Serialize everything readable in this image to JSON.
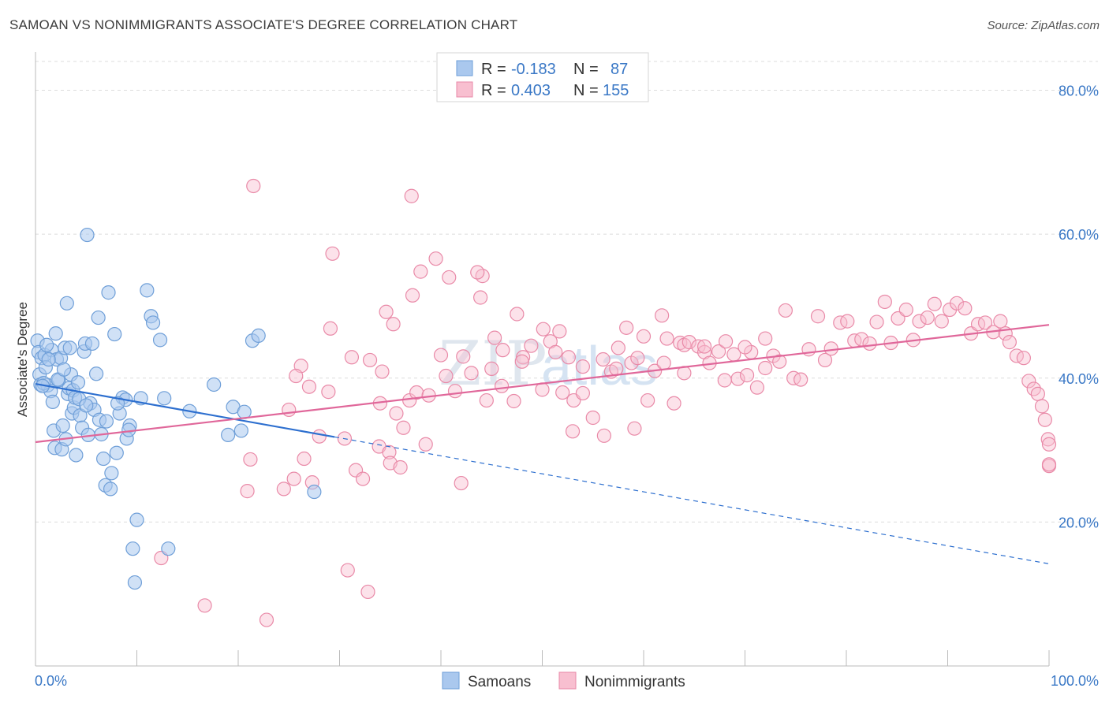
{
  "header": {
    "title": "SAMOAN VS NONIMMIGRANTS ASSOCIATE'S DEGREE CORRELATION CHART",
    "source": "Source: ZipAtlas.com"
  },
  "legend": {
    "r_label": "R =",
    "n_label": "N =",
    "rows": [
      {
        "name": "Samoans",
        "r": "-0.183",
        "n": "87",
        "fill": "#aac8ee",
        "stroke": "#6f9fd8"
      },
      {
        "name": "Nonimmigrants",
        "r": "0.403",
        "n": "155",
        "fill": "#f8bfd0",
        "stroke": "#e98aa8"
      }
    ]
  },
  "watermark": {
    "zip": "ZIP",
    "atlas": "atlas"
  },
  "chart_data": {
    "type": "scatter",
    "title": "SAMOAN VS NONIMMIGRANTS ASSOCIATE'S DEGREE CORRELATION CHART",
    "xlabel": "",
    "ylabel": "Associate's Degree",
    "xlim": [
      0,
      100
    ],
    "ylim": [
      0,
      84
    ],
    "x_tick_labels": [
      "0.0%",
      "100.0%"
    ],
    "y_ticks": [
      20,
      40,
      60,
      80
    ],
    "y_tick_labels": [
      "20.0%",
      "40.0%",
      "60.0%",
      "80.0%"
    ],
    "grid": true,
    "legend_position": "top-center",
    "colors": {
      "samoans": "#6f9fd8",
      "samoans_line": "#2d6fcf",
      "nonimmigrants": "#e98aa8",
      "nonimmigrants_line": "#e0679a"
    },
    "series": [
      {
        "name": "Samoans",
        "trend": {
          "x0": 0,
          "y0": 39.2,
          "x1": 100,
          "y1": 14.2,
          "solid_until_x": 29.5
        },
        "points": [
          [
            0.2,
            45.2
          ],
          [
            0.3,
            43.6
          ],
          [
            0.4,
            40.5
          ],
          [
            0.5,
            39.1
          ],
          [
            0.6,
            42.8
          ],
          [
            0.9,
            43.2
          ],
          [
            1.0,
            41.5
          ],
          [
            1.2,
            39.0
          ],
          [
            1.5,
            38.2
          ],
          [
            1.6,
            43.9
          ],
          [
            1.7,
            36.7
          ],
          [
            1.8,
            32.7
          ],
          [
            1.9,
            30.3
          ],
          [
            2.0,
            46.2
          ],
          [
            2.1,
            42.6
          ],
          [
            2.3,
            39.7
          ],
          [
            2.5,
            42.8
          ],
          [
            2.6,
            30.1
          ],
          [
            2.7,
            33.4
          ],
          [
            2.9,
            44.2
          ],
          [
            3.1,
            50.4
          ],
          [
            3.2,
            37.8
          ],
          [
            3.3,
            38.6
          ],
          [
            3.4,
            44.2
          ],
          [
            3.5,
            40.5
          ],
          [
            3.6,
            35.1
          ],
          [
            3.7,
            38.3
          ],
          [
            3.8,
            35.9
          ],
          [
            3.9,
            37.3
          ],
          [
            4.0,
            29.3
          ],
          [
            4.2,
            39.4
          ],
          [
            4.4,
            34.8
          ],
          [
            4.6,
            33.1
          ],
          [
            4.8,
            43.7
          ],
          [
            4.9,
            44.8
          ],
          [
            5.1,
            59.9
          ],
          [
            5.2,
            32.1
          ],
          [
            5.4,
            36.5
          ],
          [
            5.6,
            44.8
          ],
          [
            5.8,
            35.6
          ],
          [
            6.0,
            40.6
          ],
          [
            6.2,
            48.4
          ],
          [
            6.7,
            28.8
          ],
          [
            6.9,
            25.1
          ],
          [
            7.2,
            51.9
          ],
          [
            7.4,
            24.6
          ],
          [
            7.5,
            26.8
          ],
          [
            7.8,
            46.1
          ],
          [
            8.0,
            29.6
          ],
          [
            8.3,
            35.1
          ],
          [
            8.6,
            37.3
          ],
          [
            8.9,
            37.0
          ],
          [
            9.0,
            31.6
          ],
          [
            9.3,
            33.4
          ],
          [
            9.6,
            16.3
          ],
          [
            9.8,
            11.6
          ],
          [
            10.0,
            20.3
          ],
          [
            11.0,
            52.2
          ],
          [
            11.4,
            48.6
          ],
          [
            11.6,
            47.7
          ],
          [
            12.3,
            45.3
          ],
          [
            12.7,
            37.2
          ],
          [
            13.1,
            16.3
          ],
          [
            15.2,
            35.4
          ],
          [
            17.6,
            39.1
          ],
          [
            19.0,
            32.1
          ],
          [
            19.5,
            36.0
          ],
          [
            20.3,
            32.7
          ],
          [
            20.6,
            35.3
          ],
          [
            21.4,
            45.2
          ],
          [
            22.0,
            45.9
          ],
          [
            27.5,
            24.2
          ],
          [
            6.5,
            32.2
          ],
          [
            9.2,
            32.8
          ],
          [
            1.3,
            42.6
          ],
          [
            2.2,
            39.8
          ],
          [
            2.8,
            41.2
          ],
          [
            0.8,
            39.3
          ],
          [
            1.1,
            44.6
          ],
          [
            4.3,
            37.1
          ],
          [
            6.3,
            34.2
          ],
          [
            3.0,
            31.5
          ],
          [
            5.0,
            36.2
          ],
          [
            7.0,
            34.0
          ],
          [
            8.1,
            36.5
          ],
          [
            10.4,
            37.2
          ],
          [
            0.7,
            38.9
          ]
        ]
      },
      {
        "name": "Nonimmigrants",
        "trend": {
          "x0": 0,
          "y0": 31.1,
          "x1": 100,
          "y1": 47.4
        },
        "points": [
          [
            21.5,
            66.7
          ],
          [
            37.1,
            65.3
          ],
          [
            29.3,
            57.3
          ],
          [
            39.5,
            56.6
          ],
          [
            38.0,
            54.8
          ],
          [
            37.2,
            51.5
          ],
          [
            40.8,
            54.0
          ],
          [
            43.9,
            51.2
          ],
          [
            44.1,
            54.2
          ],
          [
            43.6,
            54.7
          ],
          [
            34.6,
            49.2
          ],
          [
            35.3,
            47.5
          ],
          [
            33.0,
            42.5
          ],
          [
            34.2,
            40.9
          ],
          [
            31.2,
            42.9
          ],
          [
            29.1,
            46.9
          ],
          [
            26.2,
            41.7
          ],
          [
            25.7,
            40.3
          ],
          [
            27.0,
            38.8
          ],
          [
            28.9,
            38.1
          ],
          [
            30.5,
            31.6
          ],
          [
            31.6,
            27.2
          ],
          [
            32.3,
            26.0
          ],
          [
            33.9,
            30.5
          ],
          [
            34.9,
            29.7
          ],
          [
            36.3,
            33.1
          ],
          [
            34.0,
            36.5
          ],
          [
            35.6,
            35.1
          ],
          [
            36.9,
            36.9
          ],
          [
            37.6,
            38.0
          ],
          [
            38.8,
            37.6
          ],
          [
            40.0,
            43.2
          ],
          [
            40.5,
            40.3
          ],
          [
            41.4,
            38.2
          ],
          [
            42.2,
            43.0
          ],
          [
            43.0,
            40.7
          ],
          [
            44.5,
            36.9
          ],
          [
            45.3,
            45.6
          ],
          [
            46.1,
            43.9
          ],
          [
            47.2,
            36.8
          ],
          [
            47.5,
            48.9
          ],
          [
            48.1,
            42.9
          ],
          [
            48.9,
            44.5
          ],
          [
            50.1,
            46.8
          ],
          [
            50.8,
            45.1
          ],
          [
            51.3,
            43.6
          ],
          [
            51.7,
            46.5
          ],
          [
            52.6,
            42.9
          ],
          [
            53.1,
            36.9
          ],
          [
            54.0,
            37.9
          ],
          [
            55.0,
            34.5
          ],
          [
            56.1,
            32.0
          ],
          [
            56.8,
            40.9
          ],
          [
            57.3,
            41.3
          ],
          [
            58.3,
            47.0
          ],
          [
            58.8,
            42.1
          ],
          [
            59.1,
            33.0
          ],
          [
            59.4,
            42.8
          ],
          [
            60.4,
            36.9
          ],
          [
            61.1,
            41.0
          ],
          [
            61.8,
            48.7
          ],
          [
            62.3,
            45.5
          ],
          [
            63.0,
            36.5
          ],
          [
            63.6,
            44.9
          ],
          [
            64.0,
            44.6
          ],
          [
            64.5,
            45.0
          ],
          [
            65.4,
            44.4
          ],
          [
            66.0,
            43.6
          ],
          [
            66.5,
            42.1
          ],
          [
            67.4,
            43.7
          ],
          [
            68.1,
            45.1
          ],
          [
            68.9,
            43.3
          ],
          [
            69.3,
            39.9
          ],
          [
            70.2,
            40.4
          ],
          [
            70.6,
            43.6
          ],
          [
            71.2,
            38.7
          ],
          [
            72.0,
            45.5
          ],
          [
            72.8,
            43.1
          ],
          [
            73.4,
            42.3
          ],
          [
            74.0,
            49.4
          ],
          [
            74.8,
            40.0
          ],
          [
            75.5,
            39.8
          ],
          [
            76.3,
            44.0
          ],
          [
            77.2,
            48.6
          ],
          [
            77.9,
            42.5
          ],
          [
            78.5,
            44.1
          ],
          [
            79.4,
            47.7
          ],
          [
            80.1,
            47.9
          ],
          [
            80.8,
            45.2
          ],
          [
            81.5,
            45.4
          ],
          [
            82.3,
            44.8
          ],
          [
            83.0,
            47.8
          ],
          [
            83.8,
            50.6
          ],
          [
            84.4,
            44.9
          ],
          [
            85.1,
            48.3
          ],
          [
            85.9,
            49.5
          ],
          [
            86.6,
            45.3
          ],
          [
            87.2,
            47.9
          ],
          [
            88.0,
            48.4
          ],
          [
            88.7,
            50.3
          ],
          [
            89.4,
            47.9
          ],
          [
            90.2,
            49.5
          ],
          [
            90.9,
            50.4
          ],
          [
            91.7,
            49.7
          ],
          [
            92.3,
            46.2
          ],
          [
            93.0,
            47.5
          ],
          [
            93.7,
            47.7
          ],
          [
            94.5,
            46.4
          ],
          [
            95.2,
            47.9
          ],
          [
            95.7,
            46.2
          ],
          [
            96.1,
            45.0
          ],
          [
            96.8,
            43.1
          ],
          [
            97.5,
            42.8
          ],
          [
            98.0,
            39.6
          ],
          [
            98.5,
            38.5
          ],
          [
            98.9,
            37.8
          ],
          [
            99.3,
            36.1
          ],
          [
            99.6,
            34.2
          ],
          [
            99.9,
            31.5
          ],
          [
            100.0,
            30.8
          ],
          [
            100.0,
            27.8
          ],
          [
            100.0,
            28.0
          ],
          [
            21.2,
            28.7
          ],
          [
            20.9,
            24.3
          ],
          [
            24.5,
            24.6
          ],
          [
            25.5,
            26.0
          ],
          [
            26.5,
            28.8
          ],
          [
            27.3,
            25.5
          ],
          [
            28.0,
            31.9
          ],
          [
            25.0,
            35.6
          ],
          [
            35.0,
            28.2
          ],
          [
            36.0,
            27.6
          ],
          [
            38.5,
            30.8
          ],
          [
            42.0,
            25.4
          ],
          [
            45.0,
            41.3
          ],
          [
            46.0,
            38.9
          ],
          [
            48.0,
            42.3
          ],
          [
            50.0,
            38.4
          ],
          [
            52.0,
            38.0
          ],
          [
            54.0,
            41.6
          ],
          [
            56.0,
            42.6
          ],
          [
            53.0,
            32.6
          ],
          [
            57.5,
            44.2
          ],
          [
            60.0,
            45.8
          ],
          [
            62.0,
            42.1
          ],
          [
            64.0,
            40.7
          ],
          [
            66.0,
            44.4
          ],
          [
            68.0,
            39.7
          ],
          [
            70.0,
            44.3
          ],
          [
            72.0,
            41.4
          ],
          [
            16.7,
            8.4
          ],
          [
            22.8,
            6.4
          ],
          [
            12.4,
            15.0
          ],
          [
            30.8,
            13.3
          ],
          [
            32.8,
            10.3
          ]
        ]
      }
    ],
    "bottom_legend": [
      "Samoans",
      "Nonimmigrants"
    ]
  }
}
